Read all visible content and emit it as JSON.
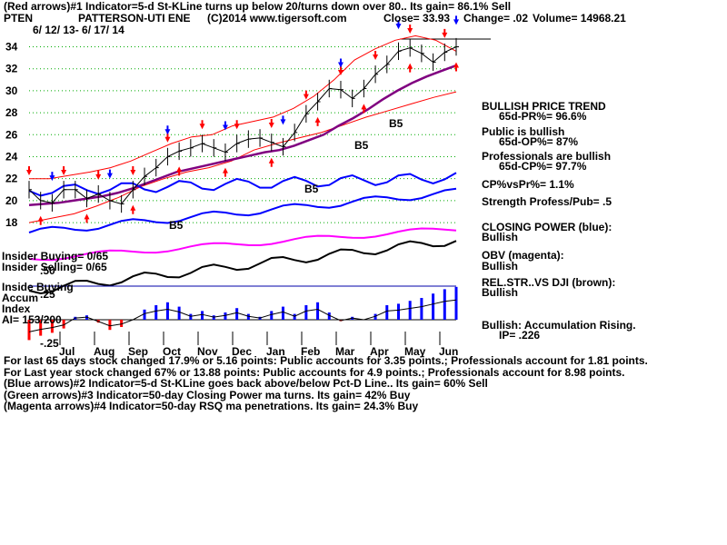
{
  "header": {
    "line1": "(Red arrows)#1 Indicator=5-d St-KLine turns up below 20/turns down over 80.. Its gain= 86.1% Sell",
    "ticker": "PTEN",
    "company": "PATTERSON-UTI ENE",
    "copyright": "(C)2014 www.tigersoft.com",
    "close": "Close=  33.93",
    "change": "Change= .02",
    "volume": "Volume= 14968.21",
    "date_range": "6/ 12/ 13- 6/ 17/ 14"
  },
  "chart_data": {
    "type": "line",
    "ticker": "PTEN",
    "price_axis": {
      "ticks": [
        34,
        32,
        30,
        28,
        26,
        24,
        22,
        20,
        18
      ],
      "range": [
        16.6,
        35.2
      ]
    },
    "months": [
      "Jul",
      "Aug",
      "Sep",
      "Oct",
      "Nov",
      "Dec",
      "Jan",
      "Feb",
      "Mar",
      "Apr",
      "May",
      "Jun"
    ],
    "price_close": [
      21.0,
      20.0,
      19.8,
      21.0,
      21.0,
      20.2,
      20.6,
      20.0,
      19.7,
      21.0,
      22.2,
      23.0,
      24.0,
      24.5,
      24.8,
      25.2,
      24.8,
      24.4,
      25.2,
      25.6,
      25.7,
      25.3,
      24.9,
      26.2,
      27.9,
      29.0,
      30.2,
      30.1,
      29.3,
      30.2,
      31.5,
      32.4,
      33.6,
      33.9,
      33.4,
      32.6,
      33.5,
      34.0
    ],
    "ma50": [
      19.6,
      19.7,
      19.8,
      20.0,
      20.2,
      20.4,
      20.7,
      21.1,
      21.6,
      22.1,
      22.6,
      22.9,
      23.2,
      23.5,
      23.8,
      24.1,
      24.4,
      24.6,
      25.0,
      25.5,
      26.0,
      26.8,
      27.5,
      28.3,
      29.2,
      30.0,
      30.7,
      31.3,
      31.8,
      32.3
    ],
    "band_upper": [
      22.0,
      22.0,
      22.3,
      22.6,
      23.0,
      23.6,
      24.4,
      25.2,
      25.8,
      26.0,
      26.8,
      27.2,
      27.6,
      28.4,
      29.5,
      31.0,
      32.8,
      33.8,
      34.6,
      35.0,
      34.6,
      33.6
    ],
    "band_lower": [
      18.0,
      18.4,
      18.8,
      19.5,
      20.3,
      21.3,
      22.0,
      22.6,
      23.0,
      23.6,
      24.6,
      25.2,
      25.7,
      26.2,
      26.9,
      27.6,
      28.2,
      28.8,
      29.4,
      29.9
    ],
    "closing_power_label": "CLOSING POWER (blue):",
    "obv_label": "OBV (magenta):",
    "relstr_label": "REL.STR..VS DJI (brown):",
    "b5_labels": [
      "B5",
      "B5",
      "B5",
      "B5"
    ],
    "accum_index_hist": [
      -0.14,
      -0.11,
      -0.09,
      -0.06,
      0.02,
      0.03,
      -0.02,
      -0.07,
      -0.05,
      0.0,
      0.07,
      0.1,
      0.12,
      0.09,
      0.04,
      0.06,
      0.03,
      0.05,
      0.08,
      0.04,
      0.02,
      0.06,
      0.09,
      0.04,
      0.1,
      0.12,
      0.05,
      -0.01,
      0.02,
      0.0,
      0.04,
      0.1,
      0.11,
      0.13,
      0.15,
      0.18,
      0.21,
      0.226
    ],
    "accum_ticks": [
      ".50",
      ".25",
      "-.25"
    ]
  },
  "left_labels": {
    "insider_buying": "Insider Buying= 0/65",
    "insider_selling": "Insider Selling= 0/65",
    "insider_buying2": "Inside Buying",
    "accum": "Accum",
    "index": "Index",
    "ai": "AI= 153/200"
  },
  "right_panel": {
    "bullish_trend": "BULLISH PRICE TREND",
    "pr": "65d-PR%= 96.6%",
    "public_bullish": "Public is bullish",
    "op": "65d-OP%= 87%",
    "pros_bullish": "Professionals are bullish",
    "cp": "65d-CP%= 97.7%",
    "cpvspr": "CP%vsPr%=  1.1%",
    "strength": "Strength Profess/Pub= .5",
    "closing_power": "CLOSING POWER (blue):",
    "closing_power_v": "Bullish",
    "obv": "OBV (magenta):",
    "obv_v": "Bullish",
    "relstr": "REL.STR..VS DJI (brown):",
    "relstr_v": "Bullish",
    "accum": "Bullish: Accumulation Rising.",
    "ip": "IP=  .226"
  },
  "footer": {
    "line1": "For last 65 days stock changed  17.9% or  5.16 points:  Public accounts for  3.35 points.;  Professionals account for  1.81 points.",
    "line2": "For Last year stock changed  67% or  13.88 points:  Public accounts for  4.9 points.;  Professionals account for  8.98 points.",
    "line3": "(Blue arrows)#2 Indicator=5-d St-KLine goes back above/below Pct-D Line.. Its gain= 60% Sell",
    "line4": "(Green arrows)#3 Indicator=50-day Closing Power ma turns. Its gain= 42% Buy",
    "line5": "(Magenta arrows)#4 Indicator=50-day RSQ ma penetrations. Its gain= 24.3% Buy"
  },
  "colors": {
    "price": "#000000",
    "ma": "#800080",
    "band": "#ff0000",
    "grid": "#00aa00",
    "closing_power": "#0000ff",
    "obv": "#ff00ff",
    "relstr": "#a05000",
    "accum_pos": "#0000ff",
    "accum_neg": "#ff0000",
    "sell_arrow": "#ff0000",
    "blue_arrow": "#0000ff"
  }
}
